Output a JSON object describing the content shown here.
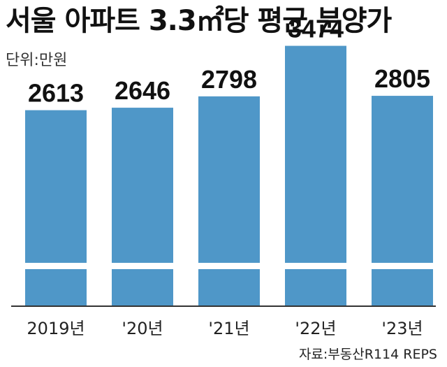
{
  "title": "서울 아파트 3.3㎡당 평균 분양가",
  "unit": "단위:만원",
  "source": "자료:부동산R114 REPS",
  "colors": {
    "bar": "#4f97c8",
    "axis": "#333333",
    "band": "#ffffff"
  },
  "chart_data": {
    "type": "bar",
    "title": "서울 아파트 3.3㎡당 평균 분양가",
    "unit": "단위:만원",
    "categories": [
      "2019년",
      "'20년",
      "'21년",
      "'22년",
      "'23년"
    ],
    "values": [
      2613,
      2646,
      2798,
      3474,
      2805
    ],
    "ylim": [
      0,
      3900
    ],
    "grid": false,
    "legend": "none"
  }
}
